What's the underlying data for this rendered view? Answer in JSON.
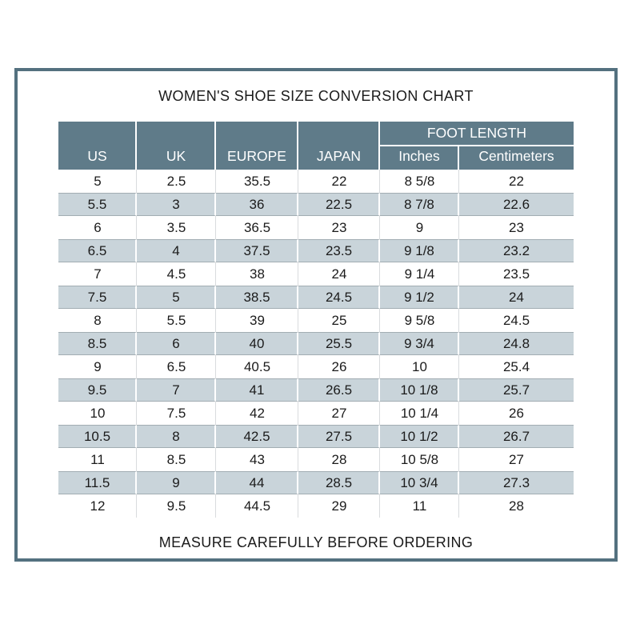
{
  "title": "WOMEN'S SHOE SIZE CONVERSION CHART",
  "footer": "MEASURE CAREFULLY BEFORE ORDERING",
  "colors": {
    "frame_border": "#54717f",
    "header_background": "#5f7b89",
    "header_text": "#ffffff",
    "shaded_row_background": "#c9d4da",
    "shaded_row_border": "#a2adb3",
    "white_row_divider": "#d9dcde",
    "body_text": "#1b1b1b"
  },
  "table": {
    "header": {
      "group_label": "FOOT LENGTH",
      "columns": [
        "US",
        "UK",
        "EUROPE",
        "JAPAN",
        "Inches",
        "Centimeters"
      ]
    }
  },
  "chart_data": {
    "type": "table",
    "title": "WOMEN'S SHOE SIZE CONVERSION CHART",
    "footer_note": "MEASURE CAREFULLY BEFORE ORDERING",
    "columns": [
      "US",
      "UK",
      "EUROPE",
      "JAPAN",
      "Foot Length Inches",
      "Foot Length Centimeters"
    ],
    "rows": [
      [
        "5",
        "2.5",
        "35.5",
        "22",
        "8 5/8",
        "22"
      ],
      [
        "5.5",
        "3",
        "36",
        "22.5",
        "8 7/8",
        "22.6"
      ],
      [
        "6",
        "3.5",
        "36.5",
        "23",
        "9",
        "23"
      ],
      [
        "6.5",
        "4",
        "37.5",
        "23.5",
        "9 1/8",
        "23.2"
      ],
      [
        "7",
        "4.5",
        "38",
        "24",
        "9 1/4",
        "23.5"
      ],
      [
        "7.5",
        "5",
        "38.5",
        "24.5",
        "9 1/2",
        "24"
      ],
      [
        "8",
        "5.5",
        "39",
        "25",
        "9 5/8",
        "24.5"
      ],
      [
        "8.5",
        "6",
        "40",
        "25.5",
        "9 3/4",
        "24.8"
      ],
      [
        "9",
        "6.5",
        "40.5",
        "26",
        "10",
        "25.4"
      ],
      [
        "9.5",
        "7",
        "41",
        "26.5",
        "10 1/8",
        "25.7"
      ],
      [
        "10",
        "7.5",
        "42",
        "27",
        "10 1/4",
        "26"
      ],
      [
        "10.5",
        "8",
        "42.5",
        "27.5",
        "10 1/2",
        "26.7"
      ],
      [
        "11",
        "8.5",
        "43",
        "28",
        "10 5/8",
        "27"
      ],
      [
        "11.5",
        "9",
        "44",
        "28.5",
        "10 3/4",
        "27.3"
      ],
      [
        "12",
        "9.5",
        "44.5",
        "29",
        "11",
        "28"
      ]
    ]
  }
}
